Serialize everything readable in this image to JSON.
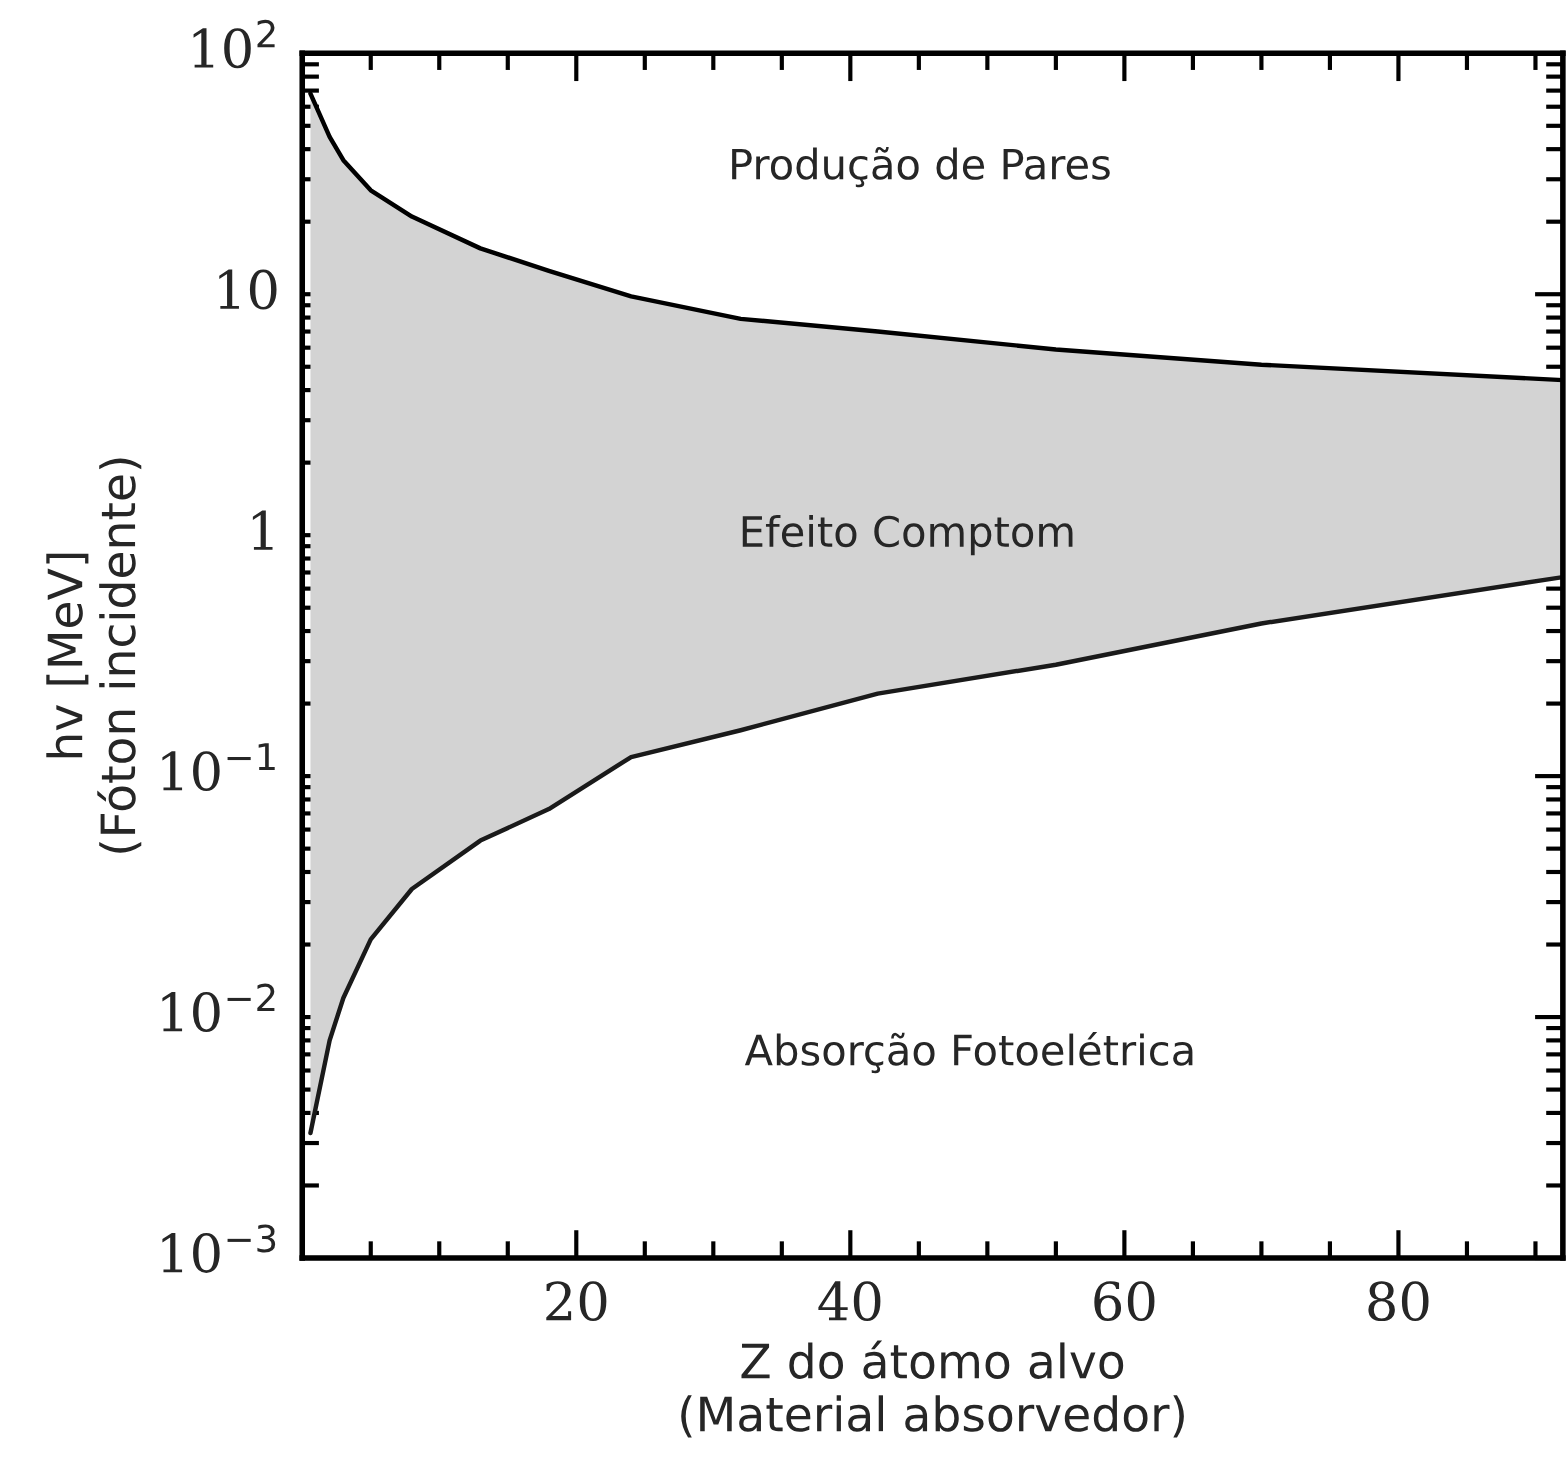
{
  "chart_data": {
    "type": "line",
    "xlabel": "Z do átomo alvo\n(Material absorvedor)",
    "ylabel": "hv [MeV]\n(Fóton incidente)",
    "x": [
      0.6,
      2,
      3,
      5,
      8,
      13,
      18,
      24,
      32,
      42,
      55,
      70,
      92
    ],
    "series": [
      {
        "color": "#000000",
        "values": [
          68,
          45,
          36,
          27,
          21,
          15.5,
          12.5,
          9.8,
          7.9,
          7.0,
          5.9,
          5.1,
          4.4
        ],
        "lower": [
          0.0033,
          0.008,
          0.012,
          0.021,
          0.034,
          0.054,
          0.073,
          0.12,
          0.155,
          0.22,
          0.29,
          0.43,
          0.67
        ],
        "upper": [
          68,
          45,
          36,
          27,
          21,
          15.5,
          12.5,
          9.8,
          7.9,
          7.0,
          5.9,
          5.1,
          4.4
        ]
      },
      {
        "color": "#1a1a1a",
        "values": [
          0.0033,
          0.008,
          0.012,
          0.021,
          0.034,
          0.054,
          0.073,
          0.12,
          0.155,
          0.22,
          0.29,
          0.43,
          0.67
        ]
      }
    ],
    "log": "y",
    "xlim": [
      0,
      92
    ],
    "ylim": [
      0.001,
      100
    ],
    "xticks": [
      {
        "value": 5,
        "label": null
      },
      {
        "value": 10,
        "label": null
      },
      {
        "value": 15,
        "label": null
      },
      20,
      {
        "value": 25,
        "label": null
      },
      {
        "value": 30,
        "label": null
      },
      {
        "value": 35,
        "label": null
      },
      40,
      {
        "value": 45,
        "label": null
      },
      {
        "value": 50,
        "label": null
      },
      {
        "value": 55,
        "label": null
      },
      60,
      {
        "value": 65,
        "label": null
      },
      {
        "value": 70,
        "label": null
      },
      {
        "value": 75,
        "label": null
      },
      80,
      {
        "value": 85,
        "label": null
      },
      {
        "value": 90,
        "label": null
      }
    ],
    "yticks": [
      {
        "value": 0.001,
        "label": "10$^{−3}$"
      },
      {
        "value": 0.01,
        "label": "10$^{−2}$"
      },
      {
        "value": 0.1,
        "label": "10$^{−1}$"
      },
      1,
      10,
      {
        "value": 100,
        "label": "10$^{2}$"
      }
    ],
    "annotations": [
      "Produção de Pares",
      "Efeito Comptom",
      "Absorção Fotoelétrica"
    ],
    "grid": false,
    "legend": false
  }
}
